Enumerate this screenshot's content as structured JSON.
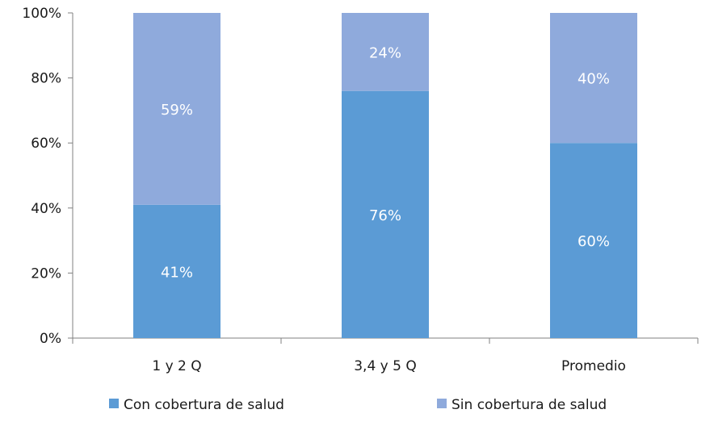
{
  "chart_data": {
    "type": "bar",
    "stacked": true,
    "percent": true,
    "categories": [
      "1 y 2 Q",
      "3,4 y 5 Q",
      "Promedio"
    ],
    "series": [
      {
        "name": "Con cobertura de salud",
        "values": [
          41,
          76,
          60
        ],
        "labels": [
          "41%",
          "76%",
          "60%"
        ],
        "color": "#5b9bd5"
      },
      {
        "name": "Sin cobertura de salud",
        "values": [
          59,
          24,
          40
        ],
        "labels": [
          "59%",
          "24%",
          "40%"
        ],
        "color": "#8faadc"
      }
    ],
    "y_ticks": [
      "0%",
      "20%",
      "40%",
      "60%",
      "80%",
      "100%"
    ],
    "ylim": [
      0,
      100
    ],
    "grid": false,
    "legend_position": "bottom",
    "colors": {
      "axis": "#808080",
      "tick_text": "#1a1a1a",
      "data_label": "#ffffff"
    }
  }
}
